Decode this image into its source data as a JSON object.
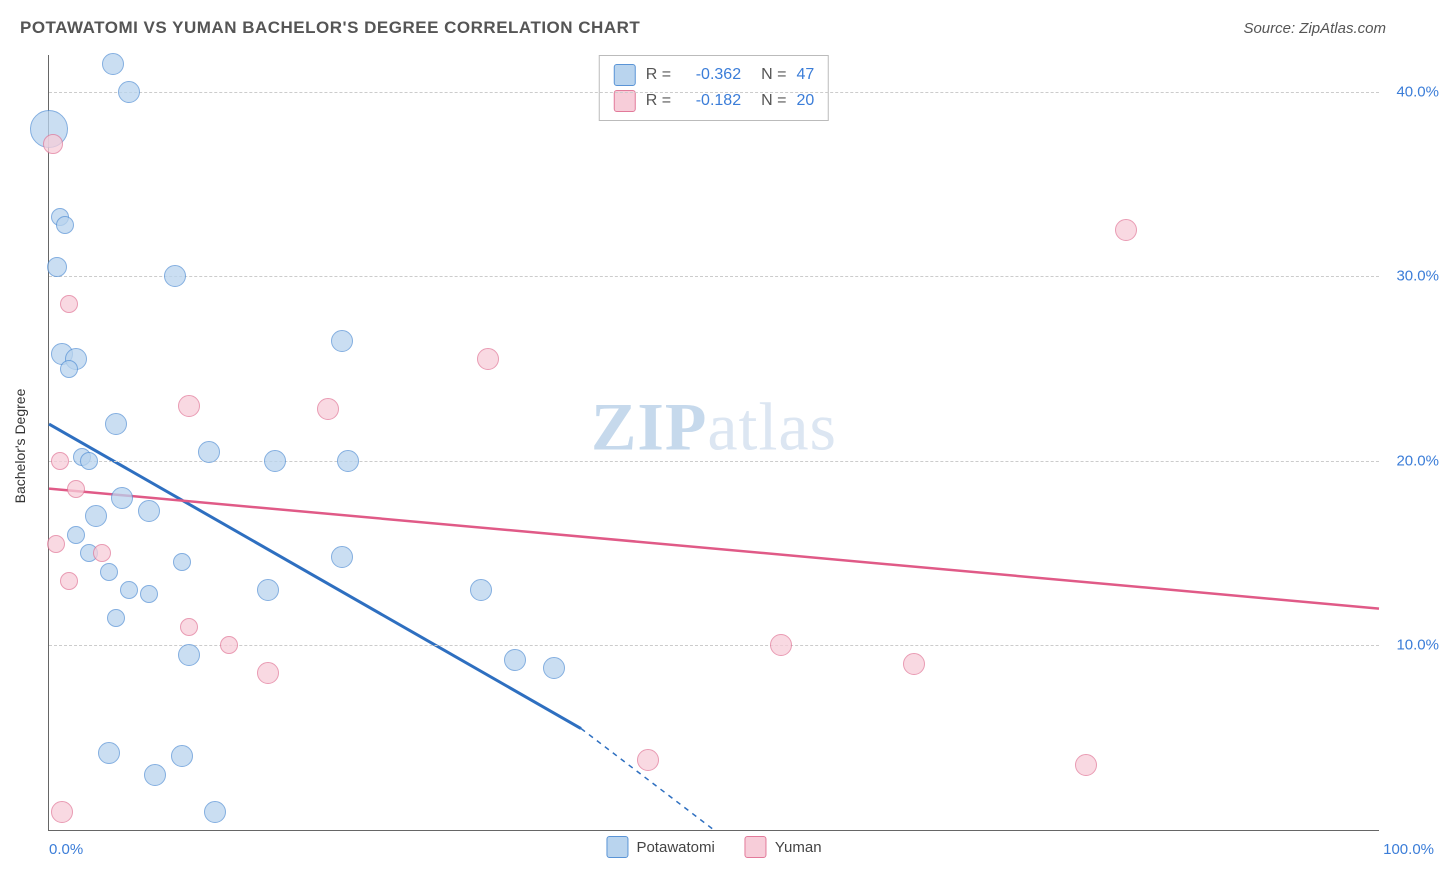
{
  "header": {
    "title": "POTAWATOMI VS YUMAN BACHELOR'S DEGREE CORRELATION CHART",
    "source": "Source: ZipAtlas.com"
  },
  "watermark": {
    "zip": "ZIP",
    "atlas": "atlas"
  },
  "chart": {
    "type": "scatter",
    "y_axis_label": "Bachelor's Degree",
    "xlim": [
      0,
      100
    ],
    "ylim": [
      0,
      42
    ],
    "x_ticks": [
      {
        "val": 0,
        "label": "0.0%"
      },
      {
        "val": 100,
        "label": "100.0%"
      }
    ],
    "y_ticks": [
      {
        "val": 10,
        "label": "10.0%"
      },
      {
        "val": 20,
        "label": "20.0%"
      },
      {
        "val": 30,
        "label": "30.0%"
      },
      {
        "val": 40,
        "label": "40.0%"
      }
    ],
    "tick_color": "#3b7dd8",
    "grid_color": "#cccccc",
    "axis_color": "#666666",
    "background_color": "#ffffff",
    "series": [
      {
        "name": "Potawatomi",
        "fill": "#b9d4ee",
        "stroke": "#5a94d6",
        "opacity": 0.75,
        "line_color": "#2e6fc0",
        "line_width": 3,
        "r_label": "R =",
        "r_value": "-0.362",
        "n_label": "N =",
        "n_value": "47",
        "trend": {
          "x1": 0,
          "y1": 22,
          "x2_solid": 40,
          "y2_solid": 5.5,
          "x2_dash": 50,
          "y2_dash": 0
        },
        "points": [
          {
            "x": 0.0,
            "y": 38.0,
            "r": 18
          },
          {
            "x": 4.8,
            "y": 41.5,
            "r": 10
          },
          {
            "x": 6.0,
            "y": 40.0,
            "r": 10
          },
          {
            "x": 0.8,
            "y": 33.2,
            "r": 8
          },
          {
            "x": 1.2,
            "y": 32.8,
            "r": 8
          },
          {
            "x": 0.6,
            "y": 30.5,
            "r": 9
          },
          {
            "x": 9.5,
            "y": 30.0,
            "r": 10
          },
          {
            "x": 1.0,
            "y": 25.8,
            "r": 10
          },
          {
            "x": 2.0,
            "y": 25.5,
            "r": 10
          },
          {
            "x": 1.5,
            "y": 25.0,
            "r": 8
          },
          {
            "x": 22.0,
            "y": 26.5,
            "r": 10
          },
          {
            "x": 5.0,
            "y": 22.0,
            "r": 10
          },
          {
            "x": 2.5,
            "y": 20.2,
            "r": 8
          },
          {
            "x": 3.0,
            "y": 20.0,
            "r": 8
          },
          {
            "x": 12.0,
            "y": 20.5,
            "r": 10
          },
          {
            "x": 17.0,
            "y": 20.0,
            "r": 10
          },
          {
            "x": 22.5,
            "y": 20.0,
            "r": 10
          },
          {
            "x": 5.5,
            "y": 18.0,
            "r": 10
          },
          {
            "x": 3.5,
            "y": 17.0,
            "r": 10
          },
          {
            "x": 7.5,
            "y": 17.3,
            "r": 10
          },
          {
            "x": 2.0,
            "y": 16.0,
            "r": 8
          },
          {
            "x": 3.0,
            "y": 15.0,
            "r": 8
          },
          {
            "x": 4.5,
            "y": 14.0,
            "r": 8
          },
          {
            "x": 10.0,
            "y": 14.5,
            "r": 8
          },
          {
            "x": 22.0,
            "y": 14.8,
            "r": 10
          },
          {
            "x": 6.0,
            "y": 13.0,
            "r": 8
          },
          {
            "x": 7.5,
            "y": 12.8,
            "r": 8
          },
          {
            "x": 16.5,
            "y": 13.0,
            "r": 10
          },
          {
            "x": 32.5,
            "y": 13.0,
            "r": 10
          },
          {
            "x": 5.0,
            "y": 11.5,
            "r": 8
          },
          {
            "x": 10.5,
            "y": 9.5,
            "r": 10
          },
          {
            "x": 35.0,
            "y": 9.2,
            "r": 10
          },
          {
            "x": 38.0,
            "y": 8.8,
            "r": 10
          },
          {
            "x": 4.5,
            "y": 4.2,
            "r": 10
          },
          {
            "x": 10.0,
            "y": 4.0,
            "r": 10
          },
          {
            "x": 8.0,
            "y": 3.0,
            "r": 10
          },
          {
            "x": 12.5,
            "y": 1.0,
            "r": 10
          }
        ]
      },
      {
        "name": "Yuman",
        "fill": "#f7cdd9",
        "stroke": "#e27a9a",
        "opacity": 0.75,
        "line_color": "#e05a87",
        "line_width": 2.5,
        "r_label": "R =",
        "r_value": "-0.182",
        "n_label": "N =",
        "n_value": "20",
        "trend": {
          "x1": 0,
          "y1": 18.5,
          "x2_solid": 100,
          "y2_solid": 12.0
        },
        "points": [
          {
            "x": 0.3,
            "y": 37.2,
            "r": 9
          },
          {
            "x": 81.0,
            "y": 32.5,
            "r": 10
          },
          {
            "x": 1.5,
            "y": 28.5,
            "r": 8
          },
          {
            "x": 33.0,
            "y": 25.5,
            "r": 10
          },
          {
            "x": 10.5,
            "y": 23.0,
            "r": 10
          },
          {
            "x": 21.0,
            "y": 22.8,
            "r": 10
          },
          {
            "x": 0.8,
            "y": 20.0,
            "r": 8
          },
          {
            "x": 2.0,
            "y": 18.5,
            "r": 8
          },
          {
            "x": 0.5,
            "y": 15.5,
            "r": 8
          },
          {
            "x": 4.0,
            "y": 15.0,
            "r": 8
          },
          {
            "x": 1.5,
            "y": 13.5,
            "r": 8
          },
          {
            "x": 10.5,
            "y": 11.0,
            "r": 8
          },
          {
            "x": 13.5,
            "y": 10.0,
            "r": 8
          },
          {
            "x": 16.5,
            "y": 8.5,
            "r": 10
          },
          {
            "x": 55.0,
            "y": 10.0,
            "r": 10
          },
          {
            "x": 65.0,
            "y": 9.0,
            "r": 10
          },
          {
            "x": 45.0,
            "y": 3.8,
            "r": 10
          },
          {
            "x": 78.0,
            "y": 3.5,
            "r": 10
          },
          {
            "x": 1.0,
            "y": 1.0,
            "r": 10
          }
        ]
      }
    ],
    "legend": {
      "items": [
        {
          "label": "Potawatomi",
          "fill": "#b9d4ee",
          "stroke": "#5a94d6"
        },
        {
          "label": "Yuman",
          "fill": "#f7cdd9",
          "stroke": "#e27a9a"
        }
      ]
    }
  }
}
